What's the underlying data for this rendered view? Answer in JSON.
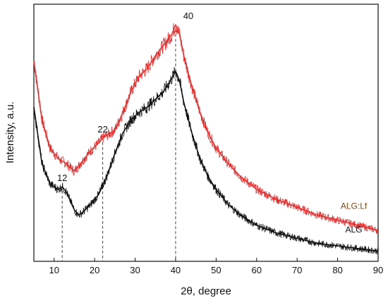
{
  "chart_data": {
    "type": "line",
    "xlabel": "2θ, degree",
    "ylabel": "Intensity, a.u.",
    "xlim": [
      5,
      90
    ],
    "xticks": [
      "10",
      "20",
      "30",
      "40",
      "50",
      "60",
      "70",
      "80",
      "90"
    ],
    "y_ticks_labeled": false,
    "grid": false,
    "legend": "inline labels at right end of each curve",
    "series": [
      {
        "name": "ALG:Lf",
        "color": "#e53030",
        "label_color": "#8b4513",
        "x": [
          5,
          7,
          9,
          11,
          13,
          15,
          17,
          19,
          21,
          22,
          23,
          25,
          27,
          29,
          31,
          33,
          35,
          37,
          39,
          40,
          41,
          42,
          44,
          46,
          48,
          50,
          53,
          56,
          60,
          65,
          70,
          75,
          80,
          85,
          90
        ],
        "y": [
          0.78,
          0.55,
          0.44,
          0.4,
          0.38,
          0.35,
          0.39,
          0.43,
          0.46,
          0.48,
          0.49,
          0.51,
          0.58,
          0.66,
          0.72,
          0.75,
          0.8,
          0.84,
          0.88,
          0.92,
          0.88,
          0.8,
          0.68,
          0.58,
          0.5,
          0.44,
          0.38,
          0.33,
          0.28,
          0.24,
          0.21,
          0.18,
          0.16,
          0.14,
          0.12
        ]
      },
      {
        "name": "ALG",
        "color": "#111111",
        "label_color": "#111111",
        "x": [
          5,
          7,
          9,
          11,
          12,
          13,
          15,
          16,
          17,
          19,
          21,
          23,
          25,
          27,
          29,
          31,
          33,
          35,
          37,
          39,
          40,
          41,
          42,
          44,
          46,
          48,
          50,
          53,
          56,
          60,
          65,
          70,
          75,
          80,
          85,
          90
        ],
        "y": [
          0.6,
          0.38,
          0.3,
          0.28,
          0.29,
          0.27,
          0.2,
          0.18,
          0.19,
          0.22,
          0.26,
          0.33,
          0.42,
          0.5,
          0.55,
          0.58,
          0.6,
          0.63,
          0.66,
          0.71,
          0.74,
          0.7,
          0.62,
          0.5,
          0.4,
          0.33,
          0.28,
          0.22,
          0.18,
          0.14,
          0.11,
          0.09,
          0.07,
          0.06,
          0.05,
          0.04
        ]
      }
    ],
    "annotations": [
      {
        "text": "12",
        "x": 12,
        "y": 0.29
      },
      {
        "text": "22",
        "x": 22,
        "y": 0.48
      },
      {
        "text": "40",
        "x": 40,
        "y": 0.92
      }
    ]
  }
}
